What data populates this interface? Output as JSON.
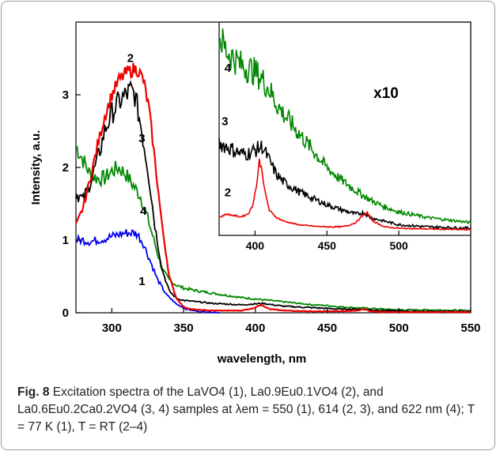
{
  "caption": {
    "label": "Fig. 8",
    "text": "Excitation spectra of the LaVO4 (1), La0.9Eu0.1VO4 (2), and La0.6Eu0.2Ca0.2VO4 (3, 4) samples at λem = 550 (1), 614 (2, 3), and 622 nm (4); T = 77 K (1), T = RT (2–4)"
  },
  "chart_data": [
    {
      "type": "line",
      "xlabel": "wavelength, nm",
      "ylabel": "Intensity, a.u.",
      "xlim": [
        275,
        550
      ],
      "ylim": [
        0,
        4
      ],
      "x_ticks": [
        300,
        350,
        400,
        450,
        500,
        550
      ],
      "y_ticks": [
        0,
        1,
        2,
        3
      ],
      "grid": false,
      "series": [
        {
          "name": "1",
          "color": "#0000ee",
          "x": [
            275,
            280,
            285,
            290,
            295,
            300,
            305,
            310,
            315,
            318,
            322,
            327,
            332,
            338,
            345,
            352,
            360,
            370,
            375
          ],
          "y": [
            1.0,
            1.0,
            0.98,
            1.0,
            1.02,
            1.05,
            1.08,
            1.1,
            1.1,
            1.08,
            0.95,
            0.7,
            0.45,
            0.25,
            0.12,
            0.05,
            0.02,
            0.01,
            0.0
          ]
        },
        {
          "name": "2",
          "color": "#ee0000",
          "x": [
            275,
            280,
            285,
            290,
            295,
            300,
            305,
            310,
            315,
            318,
            322,
            326,
            330,
            335,
            340,
            345,
            350,
            355,
            360,
            370,
            380,
            390,
            398,
            404,
            410,
            420,
            440,
            460,
            470,
            476,
            480,
            490,
            510,
            530,
            550
          ],
          "y": [
            1.2,
            1.45,
            1.85,
            2.3,
            2.7,
            3.0,
            3.2,
            3.3,
            3.35,
            3.35,
            3.2,
            2.8,
            2.1,
            1.2,
            0.5,
            0.2,
            0.08,
            0.05,
            0.04,
            0.03,
            0.03,
            0.03,
            0.06,
            0.11,
            0.05,
            0.03,
            0.02,
            0.02,
            0.03,
            0.05,
            0.02,
            0.01,
            0.01,
            0.01,
            0.01
          ]
        },
        {
          "name": "3",
          "color": "#000000",
          "x": [
            275,
            280,
            285,
            290,
            295,
            300,
            305,
            310,
            313,
            316,
            320,
            325,
            330,
            335,
            340,
            345,
            350,
            360,
            370,
            380,
            390,
            398,
            405,
            412,
            420,
            440,
            460,
            475,
            480,
            490,
            510,
            530,
            550
          ],
          "y": [
            1.65,
            1.55,
            1.8,
            2.1,
            2.5,
            2.75,
            2.9,
            3.0,
            3.05,
            3.0,
            2.6,
            2.0,
            1.2,
            0.6,
            0.3,
            0.2,
            0.17,
            0.15,
            0.13,
            0.12,
            0.11,
            0.12,
            0.13,
            0.11,
            0.09,
            0.07,
            0.05,
            0.05,
            0.04,
            0.03,
            0.02,
            0.02,
            0.02
          ]
        },
        {
          "name": "4",
          "color": "#008800",
          "x": [
            275,
            280,
            285,
            290,
            295,
            300,
            305,
            310,
            315,
            320,
            325,
            330,
            335,
            340,
            345,
            350,
            360,
            370,
            380,
            390,
            400,
            410,
            420,
            430,
            440,
            450,
            460,
            470,
            480,
            490,
            500,
            520,
            550
          ],
          "y": [
            2.3,
            2.1,
            1.9,
            1.85,
            1.85,
            1.95,
            2.0,
            1.9,
            1.75,
            1.6,
            1.3,
            0.95,
            0.6,
            0.45,
            0.38,
            0.34,
            0.3,
            0.27,
            0.24,
            0.21,
            0.19,
            0.17,
            0.15,
            0.13,
            0.11,
            0.1,
            0.08,
            0.07,
            0.06,
            0.05,
            0.04,
            0.04,
            0.03
          ]
        }
      ],
      "series_labels": [
        "1",
        "2",
        "3",
        "4"
      ]
    },
    {
      "type": "line",
      "inset": true,
      "annotation": "x10",
      "xlim": [
        375,
        550
      ],
      "x_ticks": [
        400,
        450,
        500
      ],
      "series": [
        {
          "name": "2",
          "color": "#ee0000",
          "x": [
            375,
            380,
            385,
            390,
            395,
            398,
            401,
            403,
            405,
            407,
            410,
            415,
            420,
            430,
            440,
            450,
            460,
            465,
            470,
            475,
            478,
            482,
            490,
            500,
            520,
            550
          ],
          "y": [
            0.25,
            0.3,
            0.28,
            0.26,
            0.3,
            0.4,
            0.7,
            1.05,
            0.9,
            0.6,
            0.35,
            0.25,
            0.2,
            0.15,
            0.13,
            0.12,
            0.12,
            0.14,
            0.18,
            0.28,
            0.32,
            0.2,
            0.12,
            0.1,
            0.09,
            0.08
          ]
        },
        {
          "name": "3",
          "color": "#000000",
          "x": [
            375,
            380,
            385,
            390,
            395,
            400,
            405,
            410,
            415,
            420,
            430,
            440,
            450,
            460,
            470,
            476,
            480,
            490,
            500,
            520,
            550
          ],
          "y": [
            1.3,
            1.25,
            1.2,
            1.15,
            1.15,
            1.2,
            1.25,
            1.05,
            0.85,
            0.75,
            0.62,
            0.52,
            0.43,
            0.36,
            0.3,
            0.32,
            0.25,
            0.2,
            0.15,
            0.12,
            0.1
          ]
        },
        {
          "name": "4",
          "color": "#008800",
          "x": [
            375,
            380,
            385,
            390,
            395,
            400,
            405,
            410,
            415,
            420,
            430,
            440,
            450,
            460,
            470,
            480,
            490,
            500,
            520,
            550
          ],
          "y": [
            2.8,
            2.6,
            2.5,
            2.4,
            2.35,
            2.3,
            2.2,
            2.05,
            1.85,
            1.7,
            1.45,
            1.2,
            0.95,
            0.78,
            0.63,
            0.5,
            0.4,
            0.33,
            0.25,
            0.18
          ]
        }
      ],
      "series_labels": [
        "2",
        "3",
        "4"
      ]
    }
  ]
}
